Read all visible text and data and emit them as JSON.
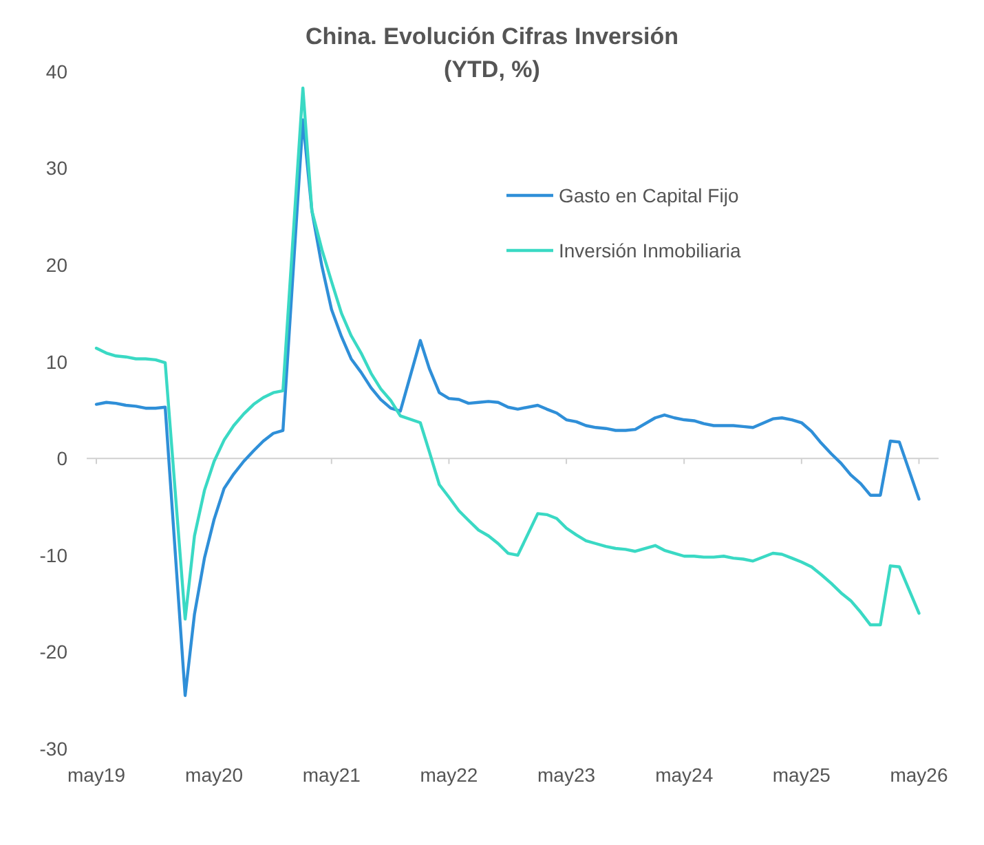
{
  "chart_data": {
    "type": "line",
    "title": "China. Evolución Cifras Inversión\n(YTD, %)",
    "ylim": [
      -30,
      40
    ],
    "yticks": [
      -30,
      -20,
      -10,
      0,
      10,
      20,
      30,
      40
    ],
    "xlim": [
      "2019-04",
      "2026-07"
    ],
    "xticks": [
      {
        "value": "2019-05",
        "label": "may19"
      },
      {
        "value": "2020-05",
        "label": "may20"
      },
      {
        "value": "2021-05",
        "label": "may21"
      },
      {
        "value": "2022-05",
        "label": "may22"
      },
      {
        "value": "2023-05",
        "label": "may23"
      },
      {
        "value": "2024-05",
        "label": "may24"
      },
      {
        "value": "2025-05",
        "label": "may25"
      },
      {
        "value": "2026-05",
        "label": "may26"
      }
    ],
    "grid": false,
    "ref_lines": [
      {
        "axis": "y",
        "value": 0,
        "color": "#d0d0d0"
      }
    ],
    "legend": "top right",
    "line_style": "solid",
    "marker": "none",
    "series": [
      {
        "name": "Gasto en Capital Fijo",
        "color": "#2f8fd8",
        "x": [
          "2019-05",
          "2019-06",
          "2019-07",
          "2019-08",
          "2019-09",
          "2019-10",
          "2019-11",
          "2019-12",
          "2020-02",
          "2020-03",
          "2020-04",
          "2020-05",
          "2020-06",
          "2020-07",
          "2020-08",
          "2020-09",
          "2020-10",
          "2020-11",
          "2020-12",
          "2021-02",
          "2021-03",
          "2021-04",
          "2021-05",
          "2021-06",
          "2021-07",
          "2021-08",
          "2021-09",
          "2021-10",
          "2021-11",
          "2021-12",
          "2022-02",
          "2022-03",
          "2022-04",
          "2022-05",
          "2022-06",
          "2022-07",
          "2022-08",
          "2022-09",
          "2022-10",
          "2022-11",
          "2022-12",
          "2023-02",
          "2023-03",
          "2023-04",
          "2023-05",
          "2023-06",
          "2023-07",
          "2023-08",
          "2023-09",
          "2023-10",
          "2023-11",
          "2023-12",
          "2024-02",
          "2024-03",
          "2024-04",
          "2024-05",
          "2024-06",
          "2024-07",
          "2024-08",
          "2024-09",
          "2024-10",
          "2024-11",
          "2024-12",
          "2025-02",
          "2025-03",
          "2025-04",
          "2025-05",
          "2025-06",
          "2025-07",
          "2025-08",
          "2025-09",
          "2025-10",
          "2025-11",
          "2025-12",
          "2026-01",
          "2026-02",
          "2026-03",
          "2026-05"
        ],
        "values": [
          5.6,
          5.8,
          5.7,
          5.5,
          5.4,
          5.2,
          5.2,
          5.3,
          -24.5,
          -16.1,
          -10.3,
          -6.3,
          -3.1,
          -1.6,
          -0.3,
          0.8,
          1.8,
          2.6,
          2.9,
          35.0,
          25.6,
          19.9,
          15.4,
          12.6,
          10.3,
          8.9,
          7.3,
          6.1,
          5.2,
          4.9,
          12.2,
          9.3,
          6.8,
          6.2,
          6.1,
          5.7,
          5.8,
          5.9,
          5.8,
          5.3,
          5.1,
          5.5,
          5.1,
          4.7,
          4.0,
          3.8,
          3.4,
          3.2,
          3.1,
          2.9,
          2.9,
          3.0,
          4.2,
          4.5,
          4.2,
          4.0,
          3.9,
          3.6,
          3.4,
          3.4,
          3.4,
          3.3,
          3.2,
          4.1,
          4.2,
          4.0,
          3.7,
          2.8,
          1.6,
          0.5,
          -0.5,
          -1.7,
          -2.6,
          -3.8,
          -3.8,
          1.8,
          1.7,
          -4.2
        ]
      },
      {
        "name": "Inversión Inmobiliaria",
        "color": "#3ad9c4",
        "x": [
          "2019-05",
          "2019-06",
          "2019-07",
          "2019-08",
          "2019-09",
          "2019-10",
          "2019-11",
          "2019-12",
          "2020-02",
          "2020-03",
          "2020-04",
          "2020-05",
          "2020-06",
          "2020-07",
          "2020-08",
          "2020-09",
          "2020-10",
          "2020-11",
          "2020-12",
          "2021-02",
          "2021-03",
          "2021-04",
          "2021-05",
          "2021-06",
          "2021-07",
          "2021-08",
          "2021-09",
          "2021-10",
          "2021-11",
          "2021-12",
          "2022-02",
          "2022-03",
          "2022-04",
          "2022-05",
          "2022-06",
          "2022-07",
          "2022-08",
          "2022-09",
          "2022-10",
          "2022-11",
          "2022-12",
          "2023-02",
          "2023-03",
          "2023-04",
          "2023-05",
          "2023-06",
          "2023-07",
          "2023-08",
          "2023-09",
          "2023-10",
          "2023-11",
          "2023-12",
          "2024-02",
          "2024-03",
          "2024-04",
          "2024-05",
          "2024-06",
          "2024-07",
          "2024-08",
          "2024-09",
          "2024-10",
          "2024-11",
          "2024-12",
          "2025-02",
          "2025-03",
          "2025-04",
          "2025-05",
          "2025-06",
          "2025-07",
          "2025-08",
          "2025-09",
          "2025-10",
          "2025-11",
          "2025-12",
          "2026-01",
          "2026-02",
          "2026-03",
          "2026-05"
        ],
        "values": [
          11.4,
          10.9,
          10.6,
          10.5,
          10.3,
          10.3,
          10.2,
          9.9,
          -16.6,
          -8.0,
          -3.3,
          -0.3,
          1.9,
          3.4,
          4.6,
          5.6,
          6.3,
          6.8,
          7.0,
          38.3,
          25.6,
          21.6,
          18.3,
          15.0,
          12.7,
          10.9,
          8.8,
          7.2,
          6.0,
          4.4,
          3.7,
          0.7,
          -2.7,
          -4.0,
          -5.4,
          -6.4,
          -7.4,
          -8.0,
          -8.8,
          -9.8,
          -10.0,
          -5.7,
          -5.8,
          -6.2,
          -7.2,
          -7.9,
          -8.5,
          -8.8,
          -9.1,
          -9.3,
          -9.4,
          -9.6,
          -9.0,
          -9.5,
          -9.8,
          -10.1,
          -10.1,
          -10.2,
          -10.2,
          -10.1,
          -10.3,
          -10.4,
          -10.6,
          -9.8,
          -9.9,
          -10.3,
          -10.7,
          -11.2,
          -12.0,
          -12.9,
          -13.9,
          -14.7,
          -15.9,
          -17.2,
          -17.2,
          -11.1,
          -11.2,
          -16.0
        ]
      }
    ]
  }
}
